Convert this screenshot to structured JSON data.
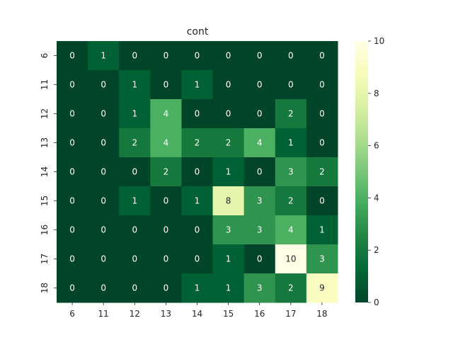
{
  "chart_data": {
    "type": "heatmap",
    "title": "cont",
    "xlabel": "",
    "ylabel": "",
    "x_categories": [
      "6",
      "11",
      "12",
      "13",
      "14",
      "15",
      "16",
      "17",
      "18"
    ],
    "y_categories": [
      "6",
      "11",
      "12",
      "13",
      "14",
      "15",
      "16",
      "17",
      "18"
    ],
    "values": [
      [
        0,
        1,
        0,
        0,
        0,
        0,
        0,
        0,
        0
      ],
      [
        0,
        0,
        1,
        0,
        1,
        0,
        0,
        0,
        0
      ],
      [
        0,
        0,
        1,
        4,
        0,
        0,
        0,
        2,
        0
      ],
      [
        0,
        0,
        2,
        4,
        2,
        2,
        4,
        1,
        0
      ],
      [
        0,
        0,
        0,
        2,
        0,
        1,
        0,
        3,
        2
      ],
      [
        0,
        0,
        1,
        0,
        1,
        8,
        3,
        2,
        0
      ],
      [
        0,
        0,
        0,
        0,
        0,
        3,
        3,
        4,
        1
      ],
      [
        0,
        0,
        0,
        0,
        0,
        1,
        0,
        10,
        3
      ],
      [
        0,
        0,
        0,
        0,
        1,
        1,
        3,
        2,
        9
      ]
    ],
    "colorbar": {
      "min": 0,
      "max": 10,
      "ticks": [
        0,
        2,
        4,
        6,
        8,
        10
      ],
      "colormap": "YlGn_r"
    },
    "annotations": true
  }
}
